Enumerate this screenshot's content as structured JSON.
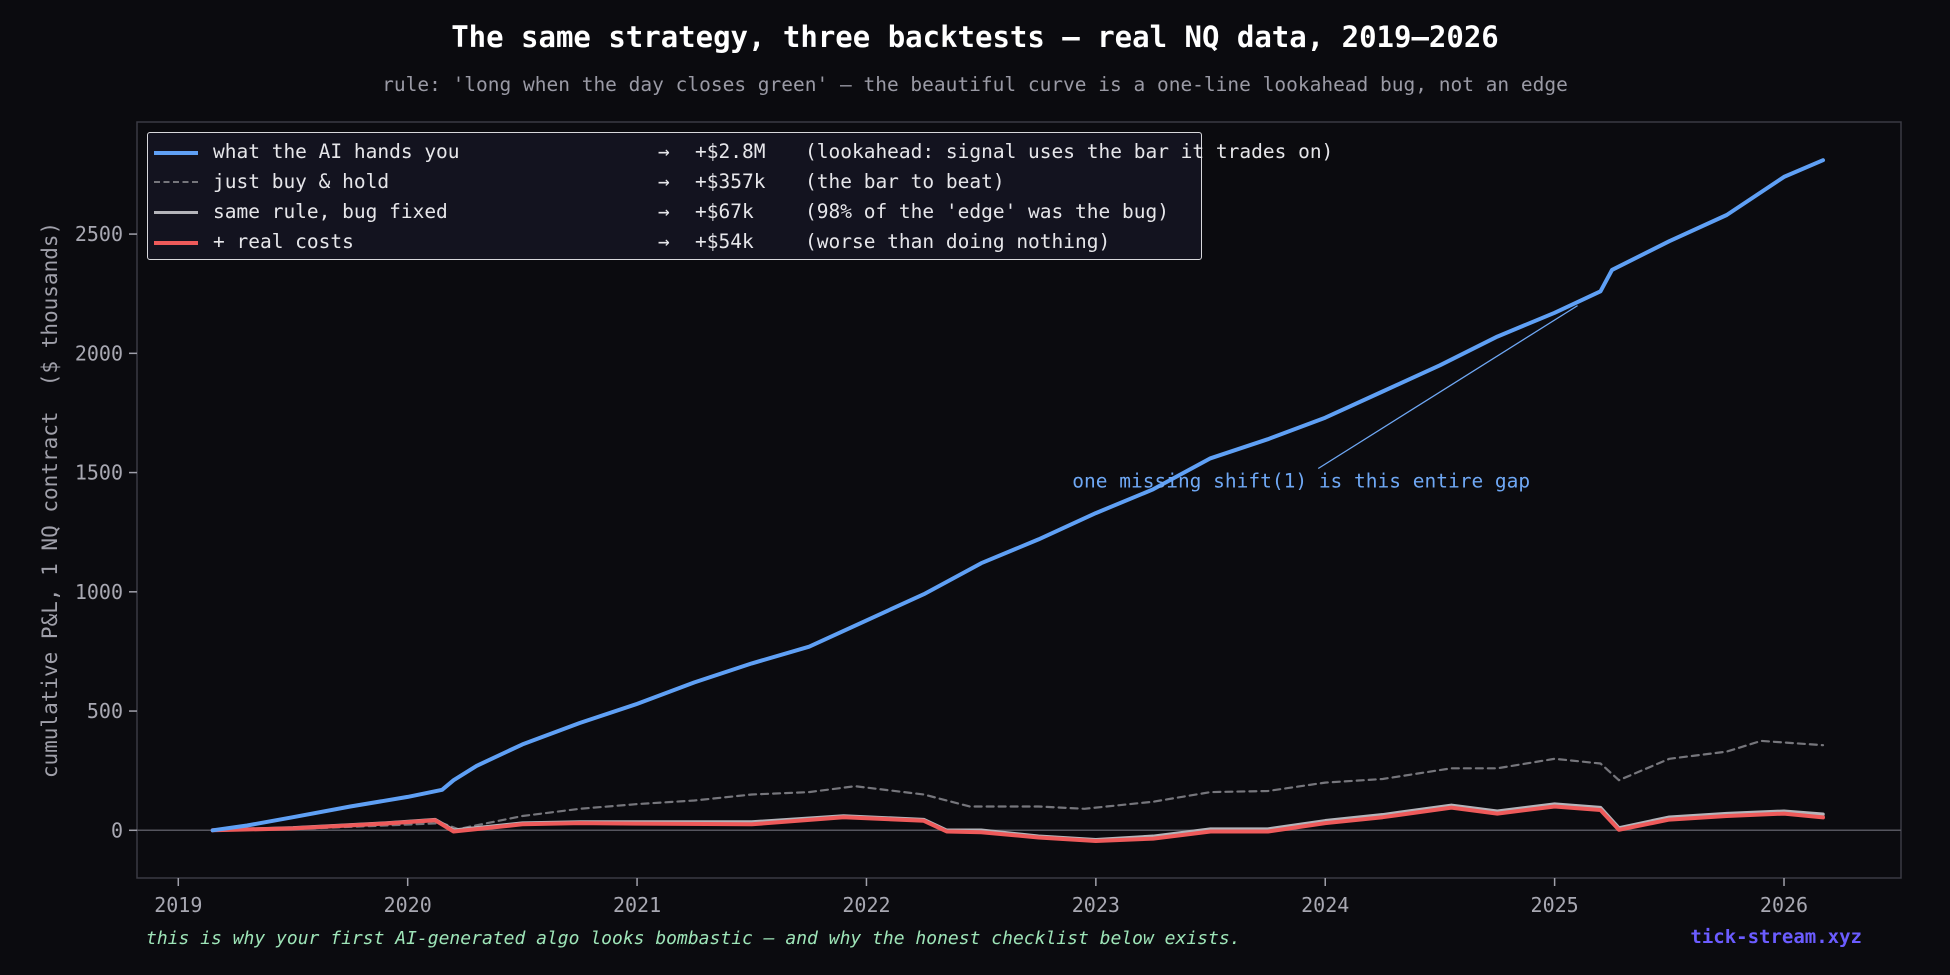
{
  "header": {
    "title": "The same strategy, three backtests — real NQ data, 2019–2026",
    "subtitle": "rule: 'long when the day closes green' — the beautiful curve is a one-line lookahead bug, not an edge"
  },
  "footer": {
    "note": "this is why your first AI-generated algo looks bombastic — and why the honest checklist below exists.",
    "brand": "tick-stream.xyz"
  },
  "colors": {
    "background": "#0b0b0f",
    "lookahead": "#5fa0f5",
    "buy_hold": "#76767c",
    "fixed": "#b4b4ba",
    "costs": "#ee5a5a",
    "annotation": "#6fa8f5"
  },
  "chart_data": {
    "type": "line",
    "title": "The same strategy, three backtests — real NQ data, 2019–2026",
    "xlabel": "",
    "ylabel": "cumulative P&L, 1 NQ contract  ($ thousands)",
    "xlim": [
      2018.82,
      2026.51
    ],
    "ylim": [
      -200,
      2970
    ],
    "x_ticks": [
      "2019",
      "2020",
      "2021",
      "2022",
      "2023",
      "2024",
      "2025",
      "2026"
    ],
    "y_ticks": [
      "0",
      "500",
      "1000",
      "1500",
      "2000",
      "2500"
    ],
    "grid": false,
    "legend_position": "upper-left",
    "legend": [
      {
        "series": "lookahead",
        "label": "what the AI hands you",
        "arrow": "→",
        "value": "+$2.8M",
        "note": "(lookahead: signal uses the bar it trades on)"
      },
      {
        "series": "buy_hold",
        "label": "just buy & hold",
        "arrow": "→",
        "value": "+$357k",
        "note": "(the bar to beat)"
      },
      {
        "series": "fixed",
        "label": "same rule, bug fixed",
        "arrow": "→",
        "value": "+$67k",
        "note": "(98% of the 'edge' was the bug)"
      },
      {
        "series": "costs",
        "label": "+ real costs",
        "arrow": "→",
        "value": "+$54k",
        "note": "(worse than doing nothing)"
      }
    ],
    "annotation": {
      "text": "one missing shift(1) is this entire gap",
      "text_at": [
        2024.0,
        1450
      ],
      "arrow_to": [
        2025.1,
        2200
      ]
    },
    "series": [
      {
        "name": "what the AI hands you",
        "key": "lookahead",
        "style": "solid",
        "x": [
          2019.15,
          2019.3,
          2019.5,
          2019.75,
          2020.0,
          2020.15,
          2020.2,
          2020.3,
          2020.5,
          2020.75,
          2021.0,
          2021.25,
          2021.5,
          2021.75,
          2022.0,
          2022.25,
          2022.5,
          2022.75,
          2023.0,
          2023.25,
          2023.5,
          2023.75,
          2024.0,
          2024.25,
          2024.5,
          2024.75,
          2025.0,
          2025.2,
          2025.25,
          2025.5,
          2025.75,
          2026.0,
          2026.17
        ],
        "y": [
          0,
          20,
          55,
          100,
          140,
          170,
          210,
          270,
          360,
          450,
          530,
          620,
          700,
          770,
          880,
          990,
          1120,
          1220,
          1330,
          1430,
          1560,
          1640,
          1730,
          1840,
          1950,
          2070,
          2170,
          2260,
          2350,
          2470,
          2580,
          2740,
          2810
        ]
      },
      {
        "name": "just buy & hold",
        "key": "buy_hold",
        "style": "dashed",
        "x": [
          2019.15,
          2019.5,
          2019.9,
          2020.15,
          2020.22,
          2020.5,
          2020.75,
          2021.0,
          2021.25,
          2021.5,
          2021.75,
          2021.95,
          2022.25,
          2022.45,
          2022.75,
          2022.95,
          2023.25,
          2023.5,
          2023.75,
          2024.0,
          2024.25,
          2024.55,
          2024.75,
          2025.0,
          2025.2,
          2025.28,
          2025.5,
          2025.75,
          2025.9,
          2026.17
        ],
        "y": [
          0,
          5,
          20,
          30,
          5,
          60,
          90,
          110,
          125,
          150,
          160,
          185,
          150,
          100,
          100,
          90,
          120,
          160,
          165,
          200,
          215,
          260,
          260,
          300,
          280,
          210,
          300,
          330,
          375,
          357
        ]
      },
      {
        "name": "same rule, bug fixed",
        "key": "fixed",
        "style": "solid",
        "x": [
          2019.15,
          2019.5,
          2019.9,
          2020.12,
          2020.2,
          2020.5,
          2020.75,
          2021.0,
          2021.5,
          2021.9,
          2022.25,
          2022.35,
          2022.5,
          2022.75,
          2023.0,
          2023.25,
          2023.5,
          2023.75,
          2024.0,
          2024.25,
          2024.55,
          2024.75,
          2025.0,
          2025.2,
          2025.28,
          2025.5,
          2025.75,
          2026.0,
          2026.17
        ],
        "y": [
          0,
          10,
          30,
          45,
          0,
          30,
          35,
          35,
          35,
          60,
          45,
          0,
          0,
          -25,
          -40,
          -25,
          5,
          5,
          40,
          65,
          105,
          80,
          110,
          95,
          10,
          55,
          70,
          80,
          67
        ]
      },
      {
        "name": "+ real costs",
        "key": "costs",
        "style": "solid",
        "x": [
          2019.15,
          2019.5,
          2019.9,
          2020.12,
          2020.2,
          2020.5,
          2020.75,
          2021.0,
          2021.5,
          2021.9,
          2022.25,
          2022.35,
          2022.5,
          2022.75,
          2023.0,
          2023.25,
          2023.5,
          2023.75,
          2024.0,
          2024.25,
          2024.55,
          2024.75,
          2025.0,
          2025.2,
          2025.28,
          2025.5,
          2025.75,
          2026.0,
          2026.17
        ],
        "y": [
          0,
          8,
          28,
          42,
          -5,
          25,
          30,
          28,
          25,
          55,
          40,
          -5,
          -8,
          -30,
          -45,
          -35,
          -5,
          -5,
          30,
          55,
          95,
          70,
          100,
          85,
          2,
          45,
          60,
          70,
          54
        ]
      }
    ]
  }
}
